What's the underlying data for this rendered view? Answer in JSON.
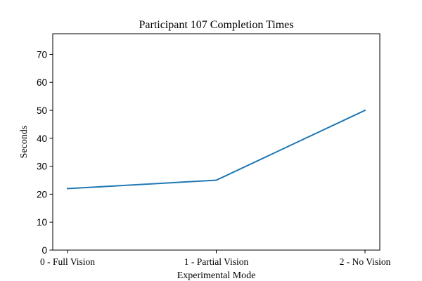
{
  "chart_data": {
    "type": "line",
    "title": "Participant 107 Completion Times",
    "xlabel": "Experimental Mode",
    "ylabel": "Seconds",
    "categories": [
      "0 - Full Vision",
      "1 - Partial Vision",
      "2 - No Vision"
    ],
    "series": [
      {
        "values": [
          22,
          25,
          50
        ],
        "color": "#1f77b4"
      }
    ],
    "ylim": [
      0,
      77.4
    ],
    "yticks": [
      0,
      10,
      20,
      30,
      40,
      50,
      60,
      70
    ],
    "grid": false,
    "legend": "none"
  }
}
